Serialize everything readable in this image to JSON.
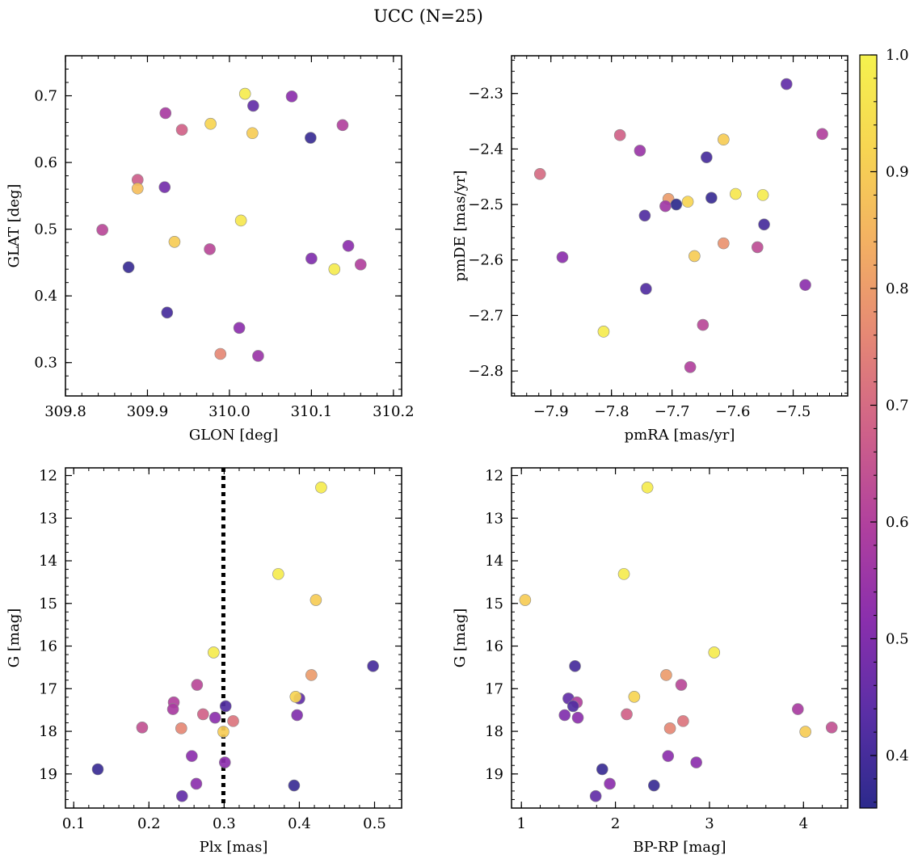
{
  "figure": {
    "title": "UCC (N=25)"
  },
  "colorbar": {
    "range": [
      0.355,
      1.0
    ],
    "ticks": [
      0.4,
      0.5,
      0.6,
      0.7,
      0.8,
      0.9,
      1.0
    ],
    "tick_labels": [
      "0.4",
      "0.5",
      "0.6",
      "0.7",
      "0.8",
      "0.9",
      "1.0"
    ],
    "colormap": "plasma",
    "colormap_stops": [
      "#2c2a8c",
      "#5a2fa6",
      "#8a2fad",
      "#b0409e",
      "#cf6189",
      "#e58775",
      "#f3b063",
      "#f7d552",
      "#f5f24e"
    ]
  },
  "chart_data": [
    {
      "type": "scatter",
      "panel": "top-left",
      "xlabel": "GLON [deg]",
      "ylabel": "GLAT [deg]",
      "xlim": [
        309.8,
        310.21
      ],
      "ylim": [
        0.25,
        0.76
      ],
      "xticks": [
        309.8,
        309.9,
        310.0,
        310.1,
        310.2
      ],
      "xtick_labels": [
        "309.8",
        "309.9",
        "310.0",
        "310.1",
        "310.2"
      ],
      "yticks": [
        0.3,
        0.4,
        0.5,
        0.6,
        0.7
      ],
      "ytick_labels": [
        "0.3",
        "0.4",
        "0.5",
        "0.6",
        "0.7"
      ],
      "points": [
        {
          "x": 310.019,
          "y": 0.703,
          "c": 0.98
        },
        {
          "x": 310.029,
          "y": 0.685,
          "c": 0.45
        },
        {
          "x": 310.076,
          "y": 0.699,
          "c": 0.52
        },
        {
          "x": 309.922,
          "y": 0.674,
          "c": 0.58
        },
        {
          "x": 309.977,
          "y": 0.658,
          "c": 0.92
        },
        {
          "x": 309.942,
          "y": 0.649,
          "c": 0.68
        },
        {
          "x": 310.028,
          "y": 0.644,
          "c": 0.9
        },
        {
          "x": 310.138,
          "y": 0.656,
          "c": 0.6
        },
        {
          "x": 310.099,
          "y": 0.637,
          "c": 0.38
        },
        {
          "x": 309.888,
          "y": 0.574,
          "c": 0.67
        },
        {
          "x": 309.888,
          "y": 0.561,
          "c": 0.87
        },
        {
          "x": 309.921,
          "y": 0.563,
          "c": 0.48
        },
        {
          "x": 310.014,
          "y": 0.513,
          "c": 0.97
        },
        {
          "x": 309.845,
          "y": 0.499,
          "c": 0.62
        },
        {
          "x": 309.933,
          "y": 0.481,
          "c": 0.9
        },
        {
          "x": 309.976,
          "y": 0.47,
          "c": 0.62
        },
        {
          "x": 310.145,
          "y": 0.475,
          "c": 0.52
        },
        {
          "x": 310.1,
          "y": 0.456,
          "c": 0.5
        },
        {
          "x": 310.16,
          "y": 0.447,
          "c": 0.6
        },
        {
          "x": 310.128,
          "y": 0.44,
          "c": 0.98
        },
        {
          "x": 309.877,
          "y": 0.443,
          "c": 0.38
        },
        {
          "x": 309.924,
          "y": 0.375,
          "c": 0.4
        },
        {
          "x": 310.012,
          "y": 0.352,
          "c": 0.52
        },
        {
          "x": 309.989,
          "y": 0.313,
          "c": 0.76
        },
        {
          "x": 310.035,
          "y": 0.31,
          "c": 0.55
        }
      ]
    },
    {
      "type": "scatter",
      "panel": "top-right",
      "xlabel": "pmRA [mas/yr]",
      "ylabel": "pmDE [mas/yr]",
      "xlim": [
        -7.965,
        -7.41
      ],
      "ylim": [
        -2.845,
        -2.232
      ],
      "xticks": [
        -7.9,
        -7.8,
        -7.7,
        -7.6,
        -7.5
      ],
      "xtick_labels": [
        "−7.9",
        "−7.8",
        "−7.7",
        "−7.6",
        "−7.5"
      ],
      "yticks": [
        -2.8,
        -2.7,
        -2.6,
        -2.5,
        -2.4,
        -2.3
      ],
      "ytick_labels": [
        "−2.8",
        "−2.7",
        "−2.6",
        "−2.5",
        "−2.4",
        "−2.3"
      ],
      "points": [
        {
          "x": -7.511,
          "y": -2.283,
          "c": 0.45
        },
        {
          "x": -7.452,
          "y": -2.373,
          "c": 0.6
        },
        {
          "x": -7.786,
          "y": -2.375,
          "c": 0.68
        },
        {
          "x": -7.615,
          "y": -2.383,
          "c": 0.9
        },
        {
          "x": -7.753,
          "y": -2.403,
          "c": 0.55
        },
        {
          "x": -7.643,
          "y": -2.415,
          "c": 0.4
        },
        {
          "x": -7.918,
          "y": -2.445,
          "c": 0.7
        },
        {
          "x": -7.595,
          "y": -2.481,
          "c": 0.97
        },
        {
          "x": -7.55,
          "y": -2.483,
          "c": 0.98
        },
        {
          "x": -7.635,
          "y": -2.488,
          "c": 0.38
        },
        {
          "x": -7.706,
          "y": -2.49,
          "c": 0.8
        },
        {
          "x": -7.674,
          "y": -2.495,
          "c": 0.92
        },
        {
          "x": -7.693,
          "y": -2.5,
          "c": 0.35
        },
        {
          "x": -7.711,
          "y": -2.503,
          "c": 0.56
        },
        {
          "x": -7.745,
          "y": -2.52,
          "c": 0.42
        },
        {
          "x": -7.548,
          "y": -2.536,
          "c": 0.4
        },
        {
          "x": -7.615,
          "y": -2.57,
          "c": 0.78
        },
        {
          "x": -7.559,
          "y": -2.577,
          "c": 0.63
        },
        {
          "x": -7.663,
          "y": -2.593,
          "c": 0.9
        },
        {
          "x": -7.881,
          "y": -2.595,
          "c": 0.52
        },
        {
          "x": -7.48,
          "y": -2.645,
          "c": 0.52
        },
        {
          "x": -7.743,
          "y": -2.652,
          "c": 0.42
        },
        {
          "x": -7.649,
          "y": -2.717,
          "c": 0.62
        },
        {
          "x": -7.813,
          "y": -2.729,
          "c": 0.98
        },
        {
          "x": -7.67,
          "y": -2.793,
          "c": 0.6
        }
      ]
    },
    {
      "type": "scatter",
      "panel": "bottom-left",
      "xlabel": "Plx [mas]",
      "ylabel": "G [mag]",
      "xlim": [
        0.089,
        0.536
      ],
      "ylim": [
        19.8,
        11.82
      ],
      "xticks": [
        0.1,
        0.2,
        0.3,
        0.4,
        0.5
      ],
      "xtick_labels": [
        "0.1",
        "0.2",
        "0.3",
        "0.4",
        "0.5"
      ],
      "yticks": [
        12,
        13,
        14,
        15,
        16,
        17,
        18,
        19
      ],
      "ytick_labels": [
        "12",
        "13",
        "14",
        "15",
        "16",
        "17",
        "18",
        "19"
      ],
      "vline": 0.299,
      "points": [
        {
          "x": 0.429,
          "y": 12.28,
          "c": 0.98
        },
        {
          "x": 0.372,
          "y": 14.31,
          "c": 0.98
        },
        {
          "x": 0.422,
          "y": 14.92,
          "c": 0.9
        },
        {
          "x": 0.286,
          "y": 16.15,
          "c": 0.98
        },
        {
          "x": 0.498,
          "y": 16.47,
          "c": 0.4
        },
        {
          "x": 0.416,
          "y": 16.68,
          "c": 0.8
        },
        {
          "x": 0.264,
          "y": 16.91,
          "c": 0.62
        },
        {
          "x": 0.4,
          "y": 17.23,
          "c": 0.45
        },
        {
          "x": 0.395,
          "y": 17.19,
          "c": 0.92
        },
        {
          "x": 0.233,
          "y": 17.32,
          "c": 0.6
        },
        {
          "x": 0.302,
          "y": 17.41,
          "c": 0.42
        },
        {
          "x": 0.232,
          "y": 17.48,
          "c": 0.58
        },
        {
          "x": 0.272,
          "y": 17.6,
          "c": 0.68
        },
        {
          "x": 0.397,
          "y": 17.62,
          "c": 0.5
        },
        {
          "x": 0.288,
          "y": 17.68,
          "c": 0.52
        },
        {
          "x": 0.312,
          "y": 17.76,
          "c": 0.72
        },
        {
          "x": 0.191,
          "y": 17.91,
          "c": 0.64
        },
        {
          "x": 0.243,
          "y": 17.93,
          "c": 0.76
        },
        {
          "x": 0.299,
          "y": 18.01,
          "c": 0.9
        },
        {
          "x": 0.257,
          "y": 18.58,
          "c": 0.52
        },
        {
          "x": 0.301,
          "y": 18.73,
          "c": 0.52
        },
        {
          "x": 0.132,
          "y": 18.89,
          "c": 0.38
        },
        {
          "x": 0.263,
          "y": 19.23,
          "c": 0.52
        },
        {
          "x": 0.393,
          "y": 19.27,
          "c": 0.38
        },
        {
          "x": 0.244,
          "y": 19.52,
          "c": 0.45
        }
      ]
    },
    {
      "type": "scatter",
      "panel": "bottom-right",
      "xlabel": "BP-RP [mag]",
      "ylabel": "G [mag]",
      "xlim": [
        0.895,
        4.47
      ],
      "ylim": [
        19.8,
        11.82
      ],
      "xticks": [
        1,
        2,
        3,
        4
      ],
      "xtick_labels": [
        "1",
        "2",
        "3",
        "4"
      ],
      "yticks": [
        12,
        13,
        14,
        15,
        16,
        17,
        18,
        19
      ],
      "ytick_labels": [
        "12",
        "13",
        "14",
        "15",
        "16",
        "17",
        "18",
        "19"
      ],
      "points": [
        {
          "x": 2.34,
          "y": 12.28,
          "c": 0.98
        },
        {
          "x": 2.09,
          "y": 14.31,
          "c": 0.98
        },
        {
          "x": 1.04,
          "y": 14.92,
          "c": 0.9
        },
        {
          "x": 3.05,
          "y": 16.15,
          "c": 0.98
        },
        {
          "x": 1.57,
          "y": 16.47,
          "c": 0.4
        },
        {
          "x": 2.54,
          "y": 16.68,
          "c": 0.8
        },
        {
          "x": 2.7,
          "y": 16.91,
          "c": 0.62
        },
        {
          "x": 1.5,
          "y": 17.23,
          "c": 0.45
        },
        {
          "x": 2.2,
          "y": 17.19,
          "c": 0.92
        },
        {
          "x": 1.59,
          "y": 17.32,
          "c": 0.6
        },
        {
          "x": 1.55,
          "y": 17.41,
          "c": 0.42
        },
        {
          "x": 3.94,
          "y": 17.48,
          "c": 0.58
        },
        {
          "x": 2.12,
          "y": 17.6,
          "c": 0.68
        },
        {
          "x": 1.46,
          "y": 17.62,
          "c": 0.5
        },
        {
          "x": 1.6,
          "y": 17.68,
          "c": 0.52
        },
        {
          "x": 2.72,
          "y": 17.76,
          "c": 0.72
        },
        {
          "x": 4.3,
          "y": 17.91,
          "c": 0.64
        },
        {
          "x": 2.58,
          "y": 17.93,
          "c": 0.76
        },
        {
          "x": 4.02,
          "y": 18.01,
          "c": 0.9
        },
        {
          "x": 2.56,
          "y": 18.58,
          "c": 0.52
        },
        {
          "x": 2.86,
          "y": 18.73,
          "c": 0.52
        },
        {
          "x": 1.86,
          "y": 18.89,
          "c": 0.38
        },
        {
          "x": 1.94,
          "y": 19.23,
          "c": 0.52
        },
        {
          "x": 2.41,
          "y": 19.27,
          "c": 0.38
        },
        {
          "x": 1.79,
          "y": 19.52,
          "c": 0.45
        }
      ]
    }
  ]
}
